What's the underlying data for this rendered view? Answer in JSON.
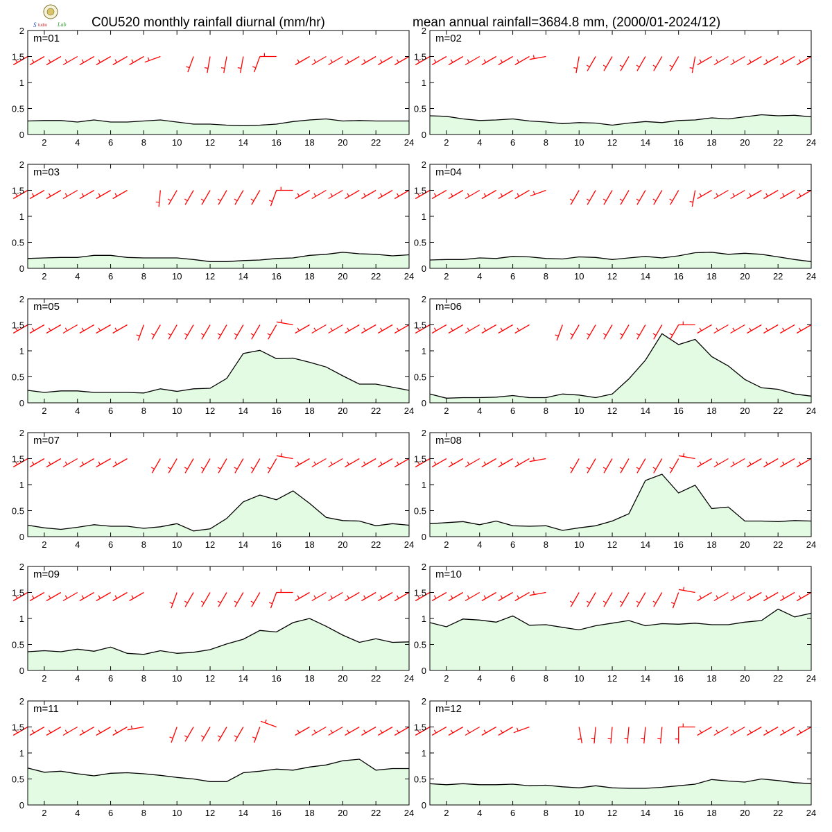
{
  "header": {
    "left_title": "C0U520 monthly rainfall diurnal (mm/hr)",
    "right_title": "mean annual rainfall=3684.8 mm, (2000/01-2024/12)"
  },
  "colors": {
    "fill": "#e2fbe2",
    "line": "#000000",
    "wind": "#ff0000",
    "frame": "#000000"
  },
  "chart_data": {
    "type": "area",
    "x": [
      1,
      2,
      3,
      4,
      5,
      6,
      7,
      8,
      9,
      10,
      11,
      12,
      13,
      14,
      15,
      16,
      17,
      18,
      19,
      20,
      21,
      22,
      23,
      24
    ],
    "xlim": [
      1,
      24
    ],
    "ylim": [
      0,
      2
    ],
    "x_ticks": [
      2,
      4,
      6,
      8,
      10,
      12,
      14,
      16,
      18,
      20,
      22,
      24
    ],
    "y_ticks": [
      0,
      0.5,
      1,
      1.5,
      2
    ],
    "y_tick_labels": [
      "0",
      "0.5",
      "1",
      "1.5",
      "2"
    ],
    "panels": [
      {
        "label": "m=01",
        "values": [
          0.26,
          0.27,
          0.27,
          0.24,
          0.28,
          0.24,
          0.24,
          0.26,
          0.28,
          0.24,
          0.2,
          0.2,
          0.18,
          0.17,
          0.18,
          0.2,
          0.25,
          0.28,
          0.3,
          0.26,
          0.27,
          0.26,
          0.26,
          0.26
        ],
        "wind_dir": [
          240,
          240,
          240,
          240,
          240,
          240,
          240,
          240,
          250,
          null,
          200,
          190,
          190,
          190,
          200,
          270,
          null,
          240,
          240,
          240,
          240,
          240,
          240,
          240
        ]
      },
      {
        "label": "m=02",
        "values": [
          0.36,
          0.35,
          0.3,
          0.27,
          0.28,
          0.3,
          0.26,
          0.24,
          0.21,
          0.23,
          0.22,
          0.18,
          0.22,
          0.25,
          0.23,
          0.27,
          0.28,
          0.32,
          0.3,
          0.34,
          0.38,
          0.36,
          0.37,
          0.34
        ],
        "wind_dir": [
          240,
          240,
          240,
          240,
          240,
          240,
          240,
          260,
          null,
          190,
          210,
          210,
          210,
          210,
          210,
          210,
          190,
          240,
          240,
          240,
          240,
          240,
          240,
          240
        ]
      },
      {
        "label": "m=03",
        "values": [
          0.19,
          0.2,
          0.21,
          0.21,
          0.25,
          0.25,
          0.21,
          0.2,
          0.2,
          0.2,
          0.17,
          0.13,
          0.13,
          0.15,
          0.16,
          0.19,
          0.2,
          0.25,
          0.27,
          0.31,
          0.28,
          0.27,
          0.24,
          0.26
        ],
        "wind_dir": [
          240,
          240,
          240,
          240,
          240,
          240,
          240,
          null,
          185,
          210,
          210,
          210,
          210,
          210,
          210,
          200,
          270,
          240,
          240,
          240,
          240,
          240,
          240,
          240
        ]
      },
      {
        "label": "m=04",
        "values": [
          0.16,
          0.17,
          0.17,
          0.2,
          0.19,
          0.23,
          0.22,
          0.19,
          0.18,
          0.22,
          0.21,
          0.17,
          0.2,
          0.23,
          0.2,
          0.24,
          0.3,
          0.31,
          0.27,
          0.29,
          0.27,
          0.22,
          0.17,
          0.13
        ],
        "wind_dir": [
          240,
          240,
          240,
          240,
          240,
          240,
          240,
          250,
          null,
          210,
          210,
          210,
          210,
          210,
          210,
          210,
          190,
          240,
          240,
          240,
          240,
          240,
          240,
          240
        ]
      },
      {
        "label": "m=05",
        "values": [
          0.24,
          0.2,
          0.23,
          0.23,
          0.2,
          0.2,
          0.2,
          0.19,
          0.27,
          0.22,
          0.27,
          0.28,
          0.47,
          0.95,
          1.01,
          0.85,
          0.86,
          0.78,
          0.69,
          0.52,
          0.36,
          0.36,
          0.3,
          0.24
        ],
        "wind_dir": [
          240,
          240,
          240,
          240,
          240,
          240,
          240,
          200,
          210,
          210,
          210,
          210,
          210,
          210,
          210,
          210,
          280,
          240,
          240,
          240,
          240,
          240,
          240,
          240
        ]
      },
      {
        "label": "m=06",
        "values": [
          0.17,
          0.09,
          0.1,
          0.1,
          0.11,
          0.14,
          0.1,
          0.1,
          0.17,
          0.15,
          0.1,
          0.17,
          0.46,
          0.82,
          1.33,
          1.12,
          1.22,
          0.89,
          0.71,
          0.45,
          0.29,
          0.26,
          0.17,
          0.13
        ],
        "wind_dir": [
          240,
          240,
          240,
          240,
          240,
          240,
          240,
          null,
          200,
          210,
          210,
          210,
          210,
          210,
          210,
          210,
          270,
          240,
          240,
          240,
          240,
          240,
          240,
          240
        ]
      },
      {
        "label": "m=07",
        "values": [
          0.22,
          0.17,
          0.14,
          0.18,
          0.23,
          0.2,
          0.2,
          0.16,
          0.19,
          0.25,
          0.11,
          0.15,
          0.35,
          0.67,
          0.8,
          0.71,
          0.88,
          0.64,
          0.37,
          0.31,
          0.3,
          0.21,
          0.25,
          0.22
        ],
        "wind_dir": [
          240,
          240,
          240,
          240,
          240,
          240,
          240,
          null,
          210,
          210,
          210,
          210,
          210,
          210,
          210,
          210,
          280,
          240,
          240,
          240,
          240,
          240,
          240,
          240
        ]
      },
      {
        "label": "m=08",
        "values": [
          0.25,
          0.27,
          0.29,
          0.23,
          0.3,
          0.21,
          0.2,
          0.21,
          0.12,
          0.17,
          0.21,
          0.3,
          0.44,
          1.08,
          1.2,
          0.84,
          0.99,
          0.54,
          0.57,
          0.3,
          0.3,
          0.29,
          0.31,
          0.3
        ],
        "wind_dir": [
          240,
          240,
          240,
          240,
          240,
          240,
          240,
          260,
          null,
          210,
          210,
          210,
          210,
          210,
          210,
          210,
          280,
          240,
          240,
          240,
          240,
          240,
          240,
          240
        ]
      },
      {
        "label": "m=09",
        "values": [
          0.36,
          0.38,
          0.36,
          0.41,
          0.37,
          0.45,
          0.33,
          0.31,
          0.38,
          0.33,
          0.35,
          0.4,
          0.51,
          0.6,
          0.77,
          0.74,
          0.92,
          1.0,
          0.85,
          0.68,
          0.54,
          0.61,
          0.54,
          0.55
        ],
        "wind_dir": [
          240,
          240,
          240,
          240,
          240,
          240,
          240,
          240,
          null,
          200,
          210,
          210,
          210,
          210,
          210,
          200,
          270,
          240,
          240,
          240,
          240,
          240,
          240,
          240
        ]
      },
      {
        "label": "m=10",
        "values": [
          0.92,
          0.84,
          0.99,
          0.97,
          0.93,
          1.05,
          0.87,
          0.88,
          0.83,
          0.78,
          0.86,
          0.91,
          0.96,
          0.86,
          0.9,
          0.89,
          0.91,
          0.88,
          0.88,
          0.93,
          0.96,
          1.18,
          1.03,
          1.1
        ],
        "wind_dir": [
          240,
          240,
          240,
          240,
          240,
          240,
          240,
          260,
          null,
          210,
          210,
          210,
          210,
          210,
          210,
          200,
          280,
          240,
          240,
          240,
          240,
          240,
          240,
          240
        ]
      },
      {
        "label": "m=11",
        "values": [
          0.71,
          0.63,
          0.65,
          0.6,
          0.56,
          0.61,
          0.62,
          0.6,
          0.57,
          0.53,
          0.5,
          0.45,
          0.45,
          0.62,
          0.65,
          0.69,
          0.67,
          0.73,
          0.77,
          0.85,
          0.88,
          0.67,
          0.7,
          0.7
        ],
        "wind_dir": [
          240,
          240,
          240,
          240,
          240,
          240,
          240,
          260,
          null,
          200,
          210,
          210,
          210,
          210,
          200,
          290,
          null,
          240,
          240,
          240,
          240,
          240,
          240,
          240
        ]
      },
      {
        "label": "m=12",
        "values": [
          0.41,
          0.39,
          0.41,
          0.39,
          0.39,
          0.4,
          0.37,
          0.38,
          0.35,
          0.33,
          0.37,
          0.33,
          0.32,
          0.32,
          0.34,
          0.37,
          0.4,
          0.49,
          0.46,
          0.44,
          0.5,
          0.47,
          0.43,
          0.41
        ],
        "wind_dir": [
          240,
          240,
          240,
          240,
          240,
          240,
          250,
          null,
          null,
          170,
          185,
          185,
          185,
          185,
          185,
          180,
          270,
          240,
          240,
          240,
          240,
          240,
          240,
          240
        ]
      }
    ]
  }
}
